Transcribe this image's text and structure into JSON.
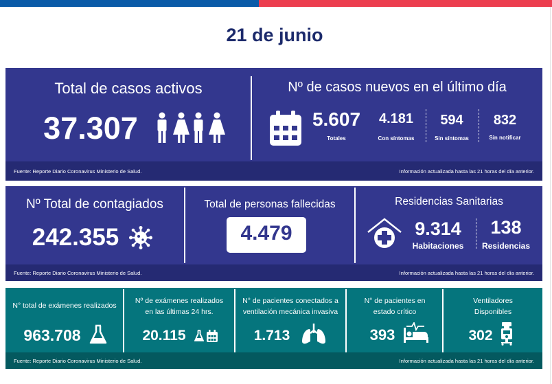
{
  "header": {
    "date": "21 de junio"
  },
  "colors": {
    "blue_bar": "#0a5ba8",
    "red_bar": "#ec3e4f",
    "panel_blue": "#33378e",
    "panel_teal": "#05757d",
    "title_text": "#1c2a6b"
  },
  "panel1": {
    "left_title": "Total de casos activos",
    "left_value": "37.307",
    "right_title": "Nº de casos nuevos en el último día",
    "new_total": "5.607",
    "new_total_label": "Totales",
    "with_symptoms": "4.181",
    "with_symptoms_label": "Con síntomas",
    "without_symptoms": "594",
    "without_symptoms_label": "Sin síntomas",
    "not_notified": "832",
    "not_notified_label": "Sin notificar",
    "source": "Fuente: Reporte Diario Coronavirus Ministerio de Salud.",
    "updated": "Información actualizada hasta las 21 horas  del día anterior."
  },
  "panel2": {
    "contagiados_title": "Nº Total de contagiados",
    "contagiados_value": "242.355",
    "fallecidos_title": "Total de personas fallecidas",
    "fallecidos_value": "4.479",
    "residencias_title": "Residencias Sanitarias",
    "habitaciones_value": "9.314",
    "habitaciones_label": "Habitaciones",
    "residencias_value": "138",
    "residencias_label": "Residencias",
    "source": "Fuente: Reporte Diario Coronavirus Ministerio de Salud.",
    "updated": "Información actualizada hasta las 21 horas  del día anterior."
  },
  "panel3": {
    "examenes_title": "N° total de exámenes realizados",
    "examenes_value": "963.708",
    "examenes24_title_1": "Nº de exámenes realizados",
    "examenes24_title_2": "en las últimas 24 hrs.",
    "examenes24_value": "20.115",
    "ventilacion_title_1": "N° de pacientes conectados a",
    "ventilacion_title_2": "ventilación mecánica invasiva",
    "ventilacion_value": "1.713",
    "critico_title_1": "N° de pacientes  en",
    "critico_title_2": "estado crítico",
    "critico_value": "393",
    "ventiladores_title_1": "Ventiladores",
    "ventiladores_title_2": "Disponibles",
    "ventiladores_value": "302",
    "source": "Fuente: Reporte Diario Coronavirus Ministerio de Salud.",
    "updated": "Información actualizada hasta las 21 horas  del día anterior."
  }
}
